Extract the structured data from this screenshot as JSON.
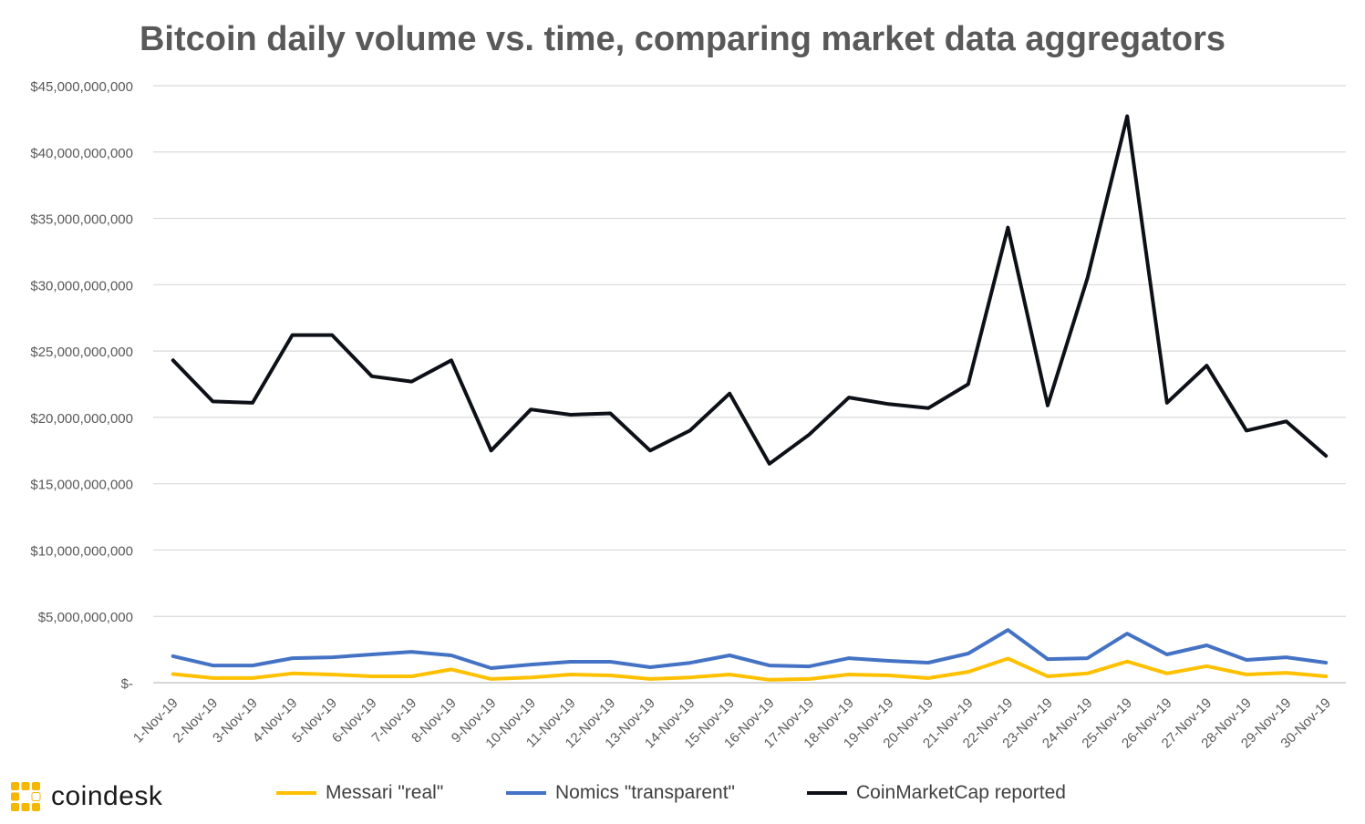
{
  "brand": {
    "name": "coindesk"
  },
  "colors": {
    "messari": "#FFC000",
    "nomics": "#4472C4",
    "cmc": "#0D1117",
    "grid": "#D9D9D9",
    "brand_accent": "#F5B700"
  },
  "chart_data": {
    "type": "line",
    "title": "Bitcoin daily volume vs. time, comparing market data aggregators",
    "xlabel": "",
    "ylabel": "",
    "ylim": [
      0,
      45000000000
    ],
    "yticks": [
      {
        "value": 0,
        "label": "$-"
      },
      {
        "value": 5000000000,
        "label": "$5,000,000,000"
      },
      {
        "value": 10000000000,
        "label": "$10,000,000,000"
      },
      {
        "value": 15000000000,
        "label": "$15,000,000,000"
      },
      {
        "value": 20000000000,
        "label": "$20,000,000,000"
      },
      {
        "value": 25000000000,
        "label": "$25,000,000,000"
      },
      {
        "value": 30000000000,
        "label": "$30,000,000,000"
      },
      {
        "value": 35000000000,
        "label": "$35,000,000,000"
      },
      {
        "value": 40000000000,
        "label": "$40,000,000,000"
      },
      {
        "value": 45000000000,
        "label": "$45,000,000,000"
      }
    ],
    "grid": "horizontal",
    "legend_position": "bottom",
    "categories": [
      "1-Nov-19",
      "2-Nov-19",
      "3-Nov-19",
      "4-Nov-19",
      "5-Nov-19",
      "6-Nov-19",
      "7-Nov-19",
      "8-Nov-19",
      "9-Nov-19",
      "10-Nov-19",
      "11-Nov-19",
      "12-Nov-19",
      "13-Nov-19",
      "14-Nov-19",
      "15-Nov-19",
      "16-Nov-19",
      "17-Nov-19",
      "18-Nov-19",
      "19-Nov-19",
      "20-Nov-19",
      "21-Nov-19",
      "22-Nov-19",
      "23-Nov-19",
      "24-Nov-19",
      "25-Nov-19",
      "26-Nov-19",
      "27-Nov-19",
      "28-Nov-19",
      "29-Nov-19",
      "30-Nov-19"
    ],
    "series": [
      {
        "name": "Messari \"real\"",
        "color": "#FFC000",
        "values": [
          650000000,
          350000000,
          350000000,
          700000000,
          620000000,
          480000000,
          480000000,
          1000000000,
          280000000,
          400000000,
          620000000,
          550000000,
          280000000,
          400000000,
          620000000,
          220000000,
          280000000,
          620000000,
          550000000,
          350000000,
          820000000,
          1820000000,
          480000000,
          700000000,
          1600000000,
          700000000,
          1250000000,
          620000000,
          750000000,
          480000000
        ]
      },
      {
        "name": "Nomics \"transparent\"",
        "color": "#4472C4",
        "values": [
          2000000000,
          1300000000,
          1300000000,
          1850000000,
          1920000000,
          2130000000,
          2330000000,
          2060000000,
          1100000000,
          1370000000,
          1580000000,
          1580000000,
          1170000000,
          1500000000,
          2060000000,
          1300000000,
          1230000000,
          1850000000,
          1650000000,
          1510000000,
          2200000000,
          3980000000,
          1780000000,
          1850000000,
          3700000000,
          2130000000,
          2820000000,
          1720000000,
          1920000000,
          1510000000
        ]
      },
      {
        "name": "CoinMarketCap reported",
        "color": "#0D1117",
        "values": [
          24300000000,
          21200000000,
          21100000000,
          26200000000,
          26200000000,
          23100000000,
          22700000000,
          24300000000,
          17500000000,
          20600000000,
          20200000000,
          20300000000,
          17500000000,
          19000000000,
          21800000000,
          16500000000,
          18700000000,
          21500000000,
          21000000000,
          20700000000,
          22500000000,
          34300000000,
          20900000000,
          30500000000,
          42700000000,
          21100000000,
          23900000000,
          19000000000,
          19700000000,
          17100000000
        ]
      }
    ]
  }
}
